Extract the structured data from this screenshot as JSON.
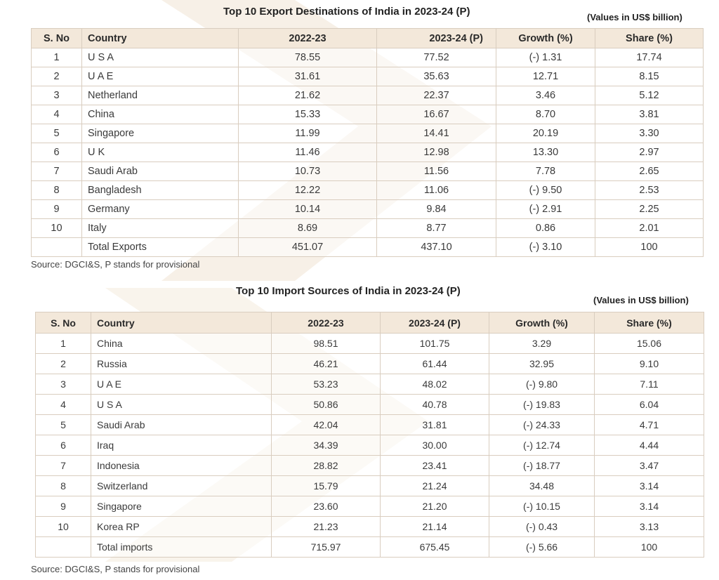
{
  "exports": {
    "title": "Top 10 Export Destinations of India in 2023-24 (P)",
    "units": "(Values in US$ billion)",
    "headers": [
      "S. No",
      "Country",
      "2022-23",
      "2023-24 (P)",
      "Growth (%)",
      "Share (%)"
    ],
    "rows": [
      [
        "1",
        "U S A",
        "78.55",
        "77.52",
        "(-) 1.31",
        "17.74"
      ],
      [
        "2",
        "U A E",
        "31.61",
        "35.63",
        "12.71",
        "8.15"
      ],
      [
        "3",
        "Netherland",
        "21.62",
        "22.37",
        "3.46",
        "5.12"
      ],
      [
        "4",
        "China",
        "15.33",
        "16.67",
        "8.70",
        "3.81"
      ],
      [
        "5",
        "Singapore",
        "11.99",
        "14.41",
        "20.19",
        "3.30"
      ],
      [
        "6",
        "U K",
        "11.46",
        "12.98",
        "13.30",
        "2.97"
      ],
      [
        "7",
        "Saudi Arab",
        "10.73",
        "11.56",
        "7.78",
        "2.65"
      ],
      [
        "8",
        "Bangladesh",
        "12.22",
        "11.06",
        "(-) 9.50",
        "2.53"
      ],
      [
        "9",
        "Germany",
        "10.14",
        "9.84",
        "(-) 2.91",
        "2.25"
      ],
      [
        "10",
        "Italy",
        "8.69",
        "8.77",
        "0.86",
        "2.01"
      ],
      [
        "",
        "Total Exports",
        "451.07",
        "437.10",
        "(-) 3.10",
        "100"
      ]
    ],
    "source": "Source: DGCI&S, P stands for provisional"
  },
  "imports": {
    "title": "Top 10 Import Sources of India in 2023-24 (P)",
    "units": "(Values in US$ billion)",
    "headers": [
      "S. No",
      "Country",
      "2022-23",
      "2023-24 (P)",
      "Growth (%)",
      "Share (%)"
    ],
    "rows": [
      [
        "1",
        "China",
        "98.51",
        "101.75",
        "3.29",
        "15.06"
      ],
      [
        "2",
        "Russia",
        "46.21",
        "61.44",
        "32.95",
        "9.10"
      ],
      [
        "3",
        "U A E",
        "53.23",
        "48.02",
        "(-) 9.80",
        "7.11"
      ],
      [
        "4",
        "U S A",
        "50.86",
        "40.78",
        "(-) 19.83",
        "6.04"
      ],
      [
        "5",
        "Saudi Arab",
        "42.04",
        "31.81",
        "(-) 24.33",
        "4.71"
      ],
      [
        "6",
        "Iraq",
        "34.39",
        "30.00",
        "(-) 12.74",
        "4.44"
      ],
      [
        "7",
        "Indonesia",
        "28.82",
        "23.41",
        "(-) 18.77",
        "3.47"
      ],
      [
        "8",
        "Switzerland",
        "15.79",
        "21.24",
        "34.48",
        "3.14"
      ],
      [
        "9",
        "Singapore",
        "23.60",
        "21.20",
        "(-) 10.15",
        "3.14"
      ],
      [
        "10",
        "Korea RP",
        "21.23",
        "21.14",
        "(-) 0.43",
        "3.13"
      ],
      [
        "",
        "Total imports",
        "715.97",
        "675.45",
        "(-) 5.66",
        "100"
      ]
    ],
    "source": "Source: DGCI&S, P stands for provisional"
  },
  "colors": {
    "header_bg": "#f3e8da",
    "border": "#d9cdbf",
    "watermark": "#f6efe6"
  }
}
